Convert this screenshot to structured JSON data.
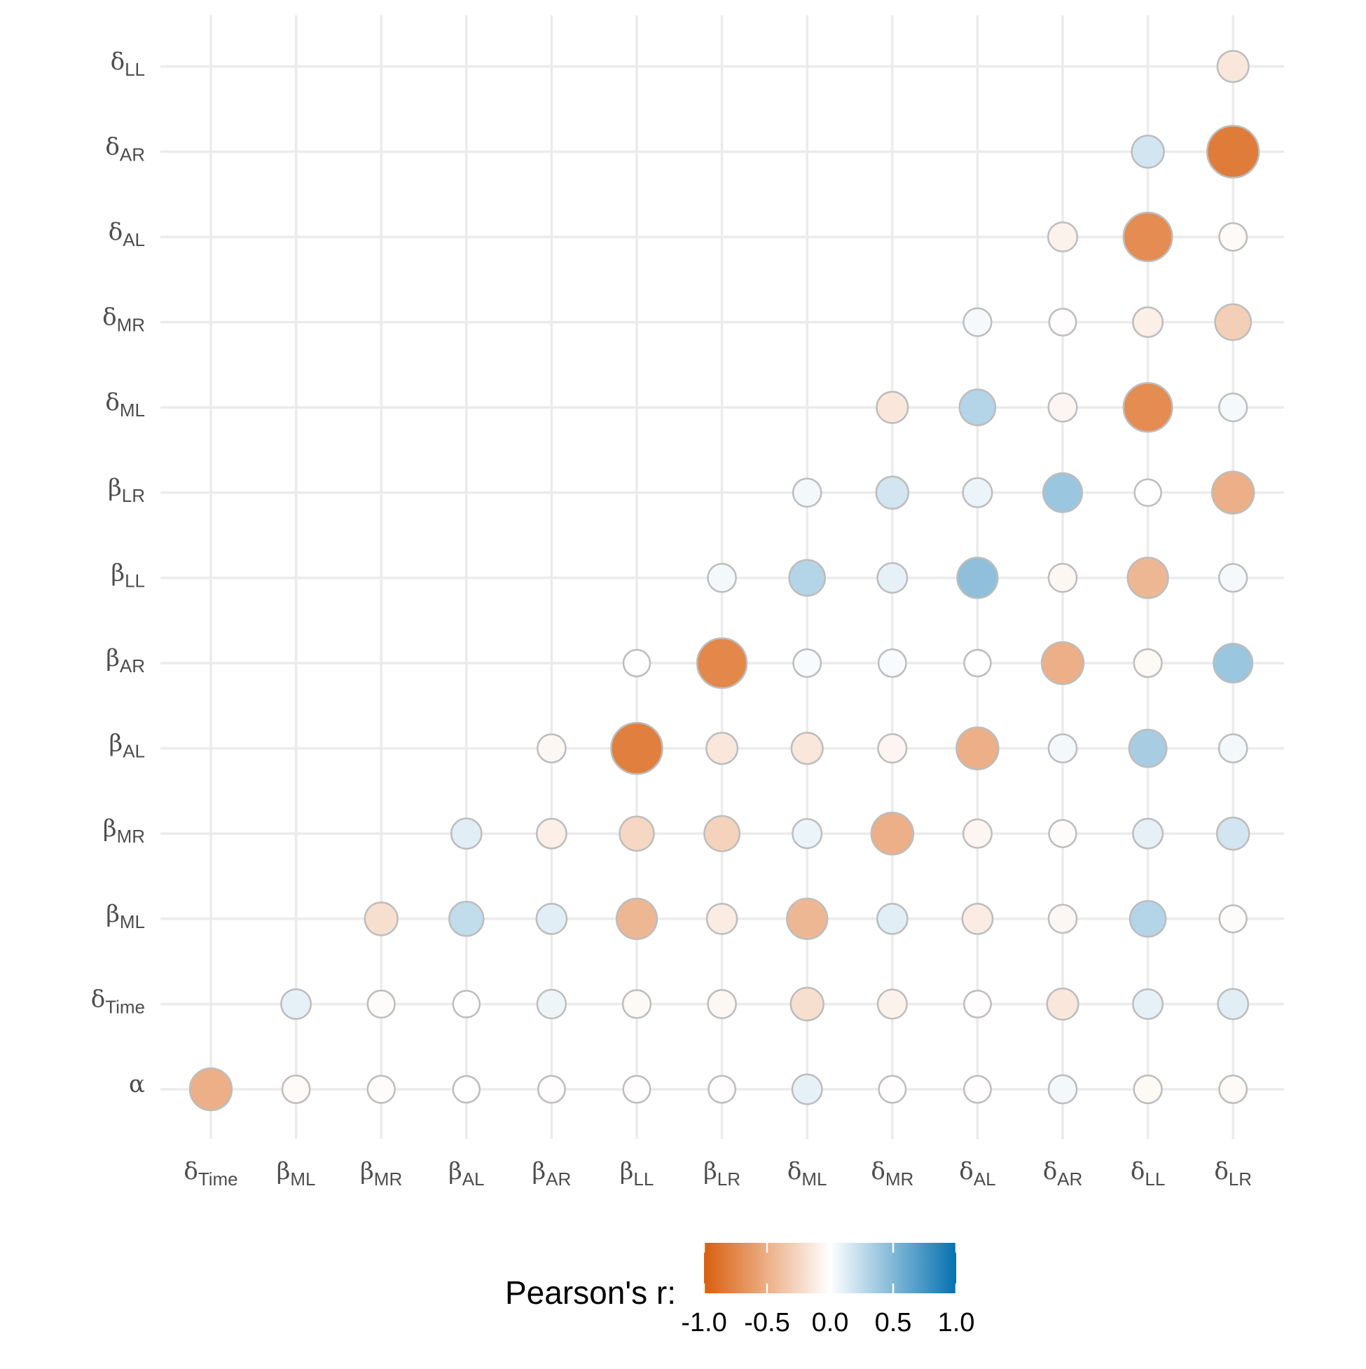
{
  "chart_data": {
    "type": "bubble-correlogram",
    "x_labels": [
      {
        "base": "δ",
        "sub": "Time"
      },
      {
        "base": "β",
        "sub": "ML"
      },
      {
        "base": "β",
        "sub": "MR"
      },
      {
        "base": "β",
        "sub": "AL"
      },
      {
        "base": "β",
        "sub": "AR"
      },
      {
        "base": "β",
        "sub": "LL"
      },
      {
        "base": "β",
        "sub": "LR"
      },
      {
        "base": "δ",
        "sub": "ML"
      },
      {
        "base": "δ",
        "sub": "MR"
      },
      {
        "base": "δ",
        "sub": "AL"
      },
      {
        "base": "δ",
        "sub": "AR"
      },
      {
        "base": "δ",
        "sub": "LL"
      },
      {
        "base": "δ",
        "sub": "LR"
      }
    ],
    "y_labels": [
      {
        "base": "α",
        "sub": ""
      },
      {
        "base": "δ",
        "sub": "Time"
      },
      {
        "base": "β",
        "sub": "ML"
      },
      {
        "base": "β",
        "sub": "MR"
      },
      {
        "base": "β",
        "sub": "AL"
      },
      {
        "base": "β",
        "sub": "AR"
      },
      {
        "base": "β",
        "sub": "LL"
      },
      {
        "base": "β",
        "sub": "LR"
      },
      {
        "base": "δ",
        "sub": "ML"
      },
      {
        "base": "δ",
        "sub": "MR"
      },
      {
        "base": "δ",
        "sub": "AL"
      },
      {
        "base": "δ",
        "sub": "AR"
      },
      {
        "base": "δ",
        "sub": "LL"
      }
    ],
    "correlations": [
      [
        -0.5,
        -0.03,
        -0.02,
        0.0,
        -0.01,
        -0.01,
        -0.01,
        0.1,
        -0.01,
        -0.01,
        0.05,
        -0.04,
        -0.03
      ],
      [
        null,
        0.1,
        -0.02,
        0.0,
        0.07,
        -0.04,
        -0.05,
        -0.2,
        -0.08,
        -0.01,
        -0.15,
        0.1,
        0.12
      ],
      [
        null,
        null,
        -0.2,
        0.25,
        0.12,
        -0.45,
        -0.12,
        -0.45,
        0.12,
        -0.12,
        -0.05,
        0.3,
        -0.02
      ],
      [
        null,
        null,
        null,
        0.12,
        -0.1,
        -0.25,
        -0.28,
        0.08,
        -0.5,
        -0.06,
        -0.02,
        0.1,
        0.18
      ],
      [
        null,
        null,
        null,
        null,
        -0.05,
        -0.8,
        -0.15,
        -0.15,
        -0.06,
        -0.5,
        0.05,
        0.35,
        0.05
      ],
      [
        null,
        null,
        null,
        null,
        null,
        0.0,
        -0.75,
        0.03,
        0.03,
        0.0,
        -0.5,
        -0.04,
        0.4
      ],
      [
        null,
        null,
        null,
        null,
        null,
        null,
        0.05,
        0.3,
        0.1,
        0.45,
        -0.05,
        -0.45,
        0.04
      ],
      [
        null,
        null,
        null,
        null,
        null,
        null,
        null,
        0.05,
        0.18,
        0.08,
        0.4,
        0.0,
        -0.5
      ],
      [
        null,
        null,
        null,
        null,
        null,
        null,
        null,
        null,
        -0.15,
        0.3,
        -0.06,
        -0.72,
        0.04
      ],
      [
        null,
        null,
        null,
        null,
        null,
        null,
        null,
        null,
        null,
        0.04,
        -0.01,
        -0.1,
        -0.3
      ],
      [
        null,
        null,
        null,
        null,
        null,
        null,
        null,
        null,
        null,
        null,
        -0.08,
        -0.72,
        -0.03
      ],
      [
        null,
        null,
        null,
        null,
        null,
        null,
        null,
        null,
        null,
        null,
        null,
        0.18,
        -0.82
      ],
      [
        null,
        null,
        null,
        null,
        null,
        null,
        null,
        null,
        null,
        null,
        null,
        null,
        -0.15
      ]
    ],
    "color_scale": {
      "min": -1.0,
      "max": 1.0,
      "negative_color": "#d95f0e",
      "zero_color": "#ffffff",
      "positive_color": "#0571b0"
    },
    "legend": {
      "title": "Pearson's r:",
      "ticks": [
        -1.0,
        -0.5,
        0.0,
        0.5,
        1.0
      ],
      "tick_labels": [
        "-1.0",
        "-0.5",
        "0.0",
        "0.5",
        "1.0"
      ],
      "position": "bottom"
    },
    "grid": true
  }
}
